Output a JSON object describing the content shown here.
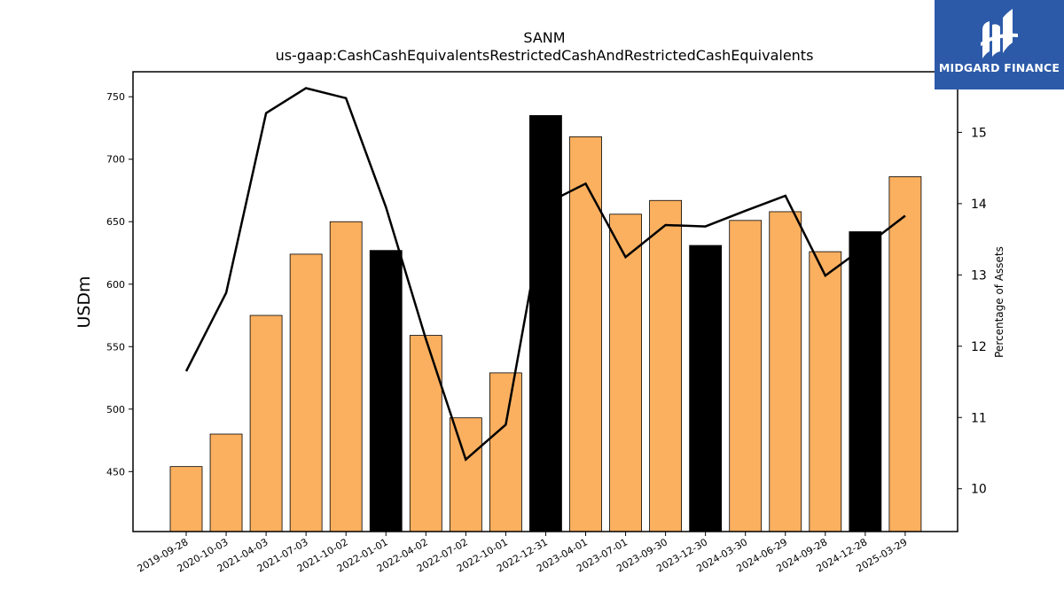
{
  "chart_data": {
    "type": "bar",
    "title": "SANM",
    "subtitle": "us-gaap:CashCashEquivalentsRestrictedCashAndRestrictedCashEquivalents",
    "ylabel": "USDm",
    "y2label": "Percentage of Assets",
    "ylim": [
      402,
      770
    ],
    "y2lim": [
      9.4,
      15.85
    ],
    "yticks": [
      450,
      500,
      550,
      600,
      650,
      700,
      750
    ],
    "y2ticks": [
      10,
      11,
      12,
      13,
      14,
      15
    ],
    "categories": [
      "2019-09-28",
      "2020-10-03",
      "2021-04-03",
      "2021-07-03",
      "2021-10-02",
      "2022-01-01",
      "2022-04-02",
      "2022-07-02",
      "2022-10-01",
      "2022-12-31",
      "2023-04-01",
      "2023-07-01",
      "2023-09-30",
      "2023-12-30",
      "2024-03-30",
      "2024-06-29",
      "2024-09-28",
      "2024-12-28",
      "2025-03-29"
    ],
    "series": [
      {
        "type": "bar",
        "values": [
          454,
          480,
          575,
          624,
          650,
          627,
          559,
          493,
          529,
          735,
          718,
          656,
          667,
          631,
          651,
          658,
          626,
          642,
          686
        ],
        "colors": [
          "#fbb05f",
          "#fbb05f",
          "#fbb05f",
          "#fbb05f",
          "#fbb05f",
          "#000000",
          "#fbb05f",
          "#fbb05f",
          "#fbb05f",
          "#000000",
          "#fbb05f",
          "#fbb05f",
          "#fbb05f",
          "#000000",
          "#fbb05f",
          "#fbb05f",
          "#fbb05f",
          "#000000",
          "#fbb05f"
        ]
      },
      {
        "type": "line",
        "axis": "right",
        "color": "#000000",
        "values": [
          11.65,
          12.75,
          15.27,
          15.62,
          15.48,
          13.95,
          12.1,
          10.41,
          10.9,
          14.0,
          14.28,
          13.25,
          13.7,
          13.68,
          13.9,
          14.11,
          12.99,
          13.4,
          13.83
        ]
      }
    ],
    "grid": false,
    "legend": "none"
  },
  "logo": {
    "text": "MIDGARD FINANCE",
    "background": "#2c5aa8",
    "icon": "midgard-logo-icon"
  }
}
